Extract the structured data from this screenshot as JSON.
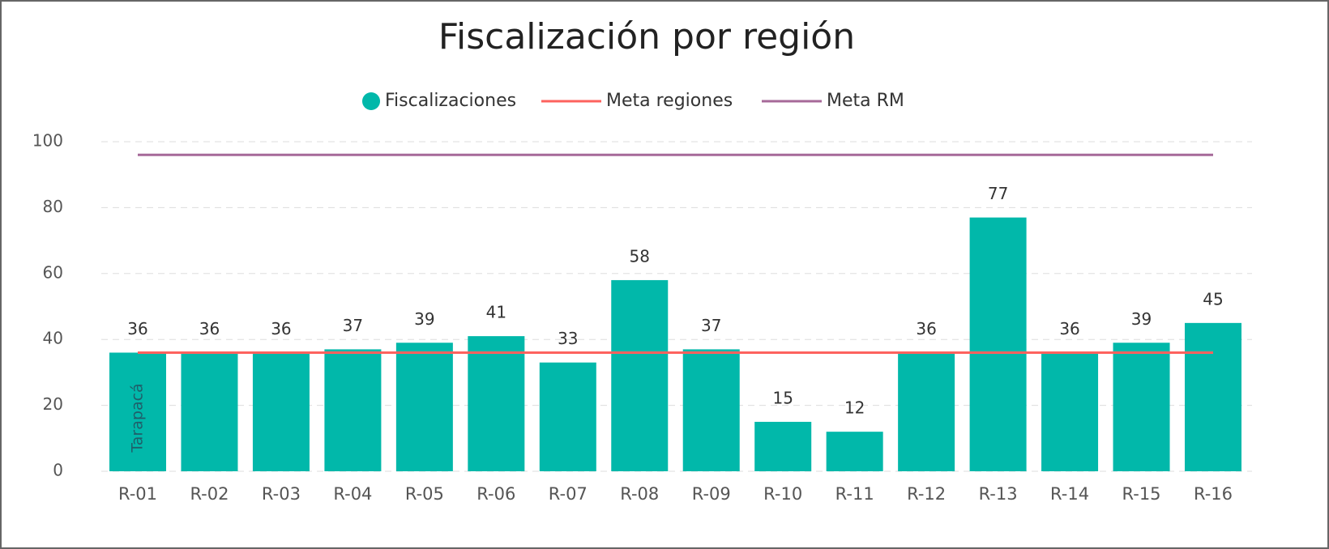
{
  "chart_data": {
    "type": "bar",
    "title": "Fiscalización por región",
    "categories": [
      "R-01",
      "R-02",
      "R-03",
      "R-04",
      "R-05",
      "R-06",
      "R-07",
      "R-08",
      "R-09",
      "R-10",
      "R-11",
      "R-12",
      "R-13",
      "R-14",
      "R-15",
      "R-16"
    ],
    "series": [
      {
        "name": "Fiscalizaciones",
        "type": "bar",
        "color": "#01b8aa",
        "values": [
          36,
          36,
          36,
          37,
          39,
          41,
          33,
          58,
          37,
          15,
          12,
          36,
          77,
          36,
          39,
          45
        ]
      },
      {
        "name": "Meta regiones",
        "type": "line",
        "color": "#fd625e",
        "values": [
          36,
          36,
          36,
          36,
          36,
          36,
          36,
          36,
          36,
          36,
          36,
          36,
          36,
          36,
          36,
          36
        ]
      },
      {
        "name": "Meta RM",
        "type": "line",
        "color": "#a66999",
        "values": [
          96,
          96,
          96,
          96,
          96,
          96,
          96,
          96,
          96,
          96,
          96,
          96,
          96,
          96,
          96,
          96
        ]
      }
    ],
    "annotation": "Tarapacá",
    "ylim": [
      0,
      100
    ],
    "yticks": [
      0,
      20,
      40,
      60,
      80,
      100
    ],
    "grid": true
  }
}
